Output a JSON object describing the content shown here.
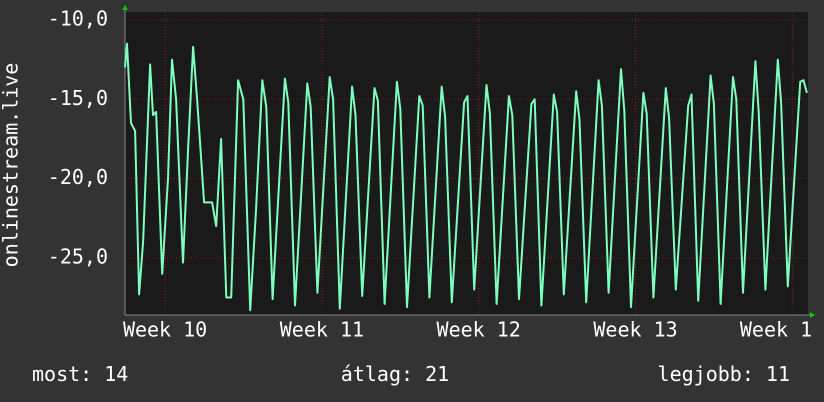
{
  "chart_data": {
    "type": "line",
    "y_label": "onlinestream.live",
    "x": [
      -1.79,
      -1.7,
      -1.52,
      -1.34,
      -1.16,
      -0.98,
      -0.67,
      -0.54,
      -0.4,
      -0.13,
      0.13,
      0.31,
      0.49,
      0.8,
      1.03,
      1.25,
      1.43,
      1.74,
      2.1,
      2.28,
      2.5,
      2.73,
      2.95,
      3.26,
      3.49,
      3.8,
      4.06,
      4.34,
      4.52,
      4.8,
      5.35,
      5.5,
      5.8,
      6.35,
      6.5,
      6.8,
      7.35,
      7.5,
      7.8,
      8.35,
      8.5,
      8.8,
      9.35,
      9.5,
      9.8,
      10.35,
      10.5,
      10.8,
      11.35,
      11.5,
      11.8,
      12.35,
      12.5,
      12.8,
      13.35,
      13.5,
      13.8,
      14.35,
      14.5,
      14.8,
      15.35,
      15.5,
      15.8,
      16.35,
      16.5,
      16.8,
      17.35,
      17.5,
      17.8,
      18.35,
      18.5,
      18.8,
      19.35,
      19.5,
      19.8,
      20.35,
      20.5,
      20.8,
      21.35,
      21.5,
      21.8,
      22.35,
      22.5,
      22.8,
      23.35,
      23.5,
      23.8,
      24.35,
      24.5,
      24.8,
      25.35,
      25.5,
      25.8,
      26.35,
      26.5,
      26.8,
      27.35,
      27.5,
      27.8,
      28.35,
      28.5,
      28.65
    ],
    "series": [
      {
        "name": "onlinestream.live",
        "color": "#7dffbe",
        "values": [
          -13,
          -11.5,
          -16.5,
          -17,
          -27.3,
          -24,
          -12.8,
          -16,
          -15.8,
          -26,
          -20,
          -12.5,
          -15,
          -25.3,
          -18,
          -11.7,
          -15,
          -21.5,
          -21.5,
          -23,
          -17.5,
          -27.5,
          -27.5,
          -13.8,
          -15,
          -28.3,
          -22,
          -13.8,
          -15.5,
          -27.6,
          -13.7,
          -15.2,
          -28.0,
          -14.0,
          -15.5,
          -27.2,
          -13.6,
          -15.0,
          -28.2,
          -14.2,
          -16.0,
          -27.4,
          -14.3,
          -15.1,
          -27.9,
          -13.9,
          -15.6,
          -28.1,
          -14.8,
          -15.4,
          -27.5,
          -14.2,
          -16.1,
          -27.8,
          -15.2,
          -14.8,
          -27.0,
          -14.1,
          -15.9,
          -27.9,
          -14.8,
          -16.0,
          -27.6,
          -15.3,
          -15.0,
          -28.0,
          -14.7,
          -15.8,
          -27.3,
          -14.5,
          -16.3,
          -27.8,
          -13.8,
          -15.4,
          -27.2,
          -13.1,
          -15.7,
          -28.1,
          -14.6,
          -15.9,
          -27.5,
          -14.3,
          -16.2,
          -27.0,
          -15.4,
          -14.7,
          -27.7,
          -13.5,
          -15.3,
          -27.9,
          -13.6,
          -15.0,
          -27.2,
          -12.6,
          -15.8,
          -27.0,
          -12.5,
          -15.2,
          -26.8,
          -13.9,
          -13.8,
          -14.6
        ]
      }
    ],
    "xlim": [
      -1.79,
      28.7
    ],
    "xticks": [
      {
        "value": 0,
        "label": "Week 10"
      },
      {
        "value": 7,
        "label": "Week 11"
      },
      {
        "value": 14,
        "label": "Week 12"
      },
      {
        "value": 21,
        "label": "Week 13"
      },
      {
        "value": 28,
        "label": "Week 1"
      }
    ],
    "ylim": [
      -28.6,
      -9.5
    ],
    "yticks": [
      {
        "value": -10,
        "label": "-10,0"
      },
      {
        "value": -15,
        "label": "-15,0"
      },
      {
        "value": -20,
        "label": "-20,0"
      },
      {
        "value": -25,
        "label": "-25,0"
      }
    ],
    "grid": true,
    "stats": [
      {
        "label": "most:",
        "value": 14
      },
      {
        "label": "átlag:",
        "value": 21
      },
      {
        "label": "legjobb:",
        "value": 11
      }
    ]
  }
}
